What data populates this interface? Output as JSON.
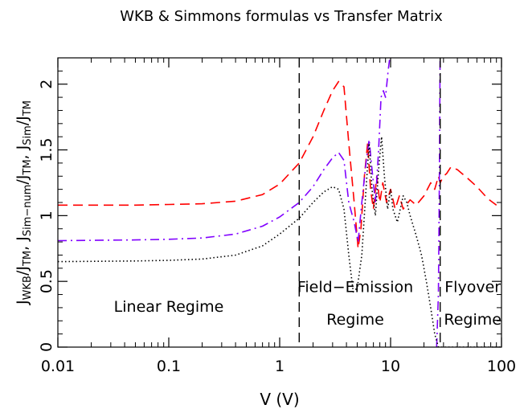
{
  "chart_data": {
    "type": "line",
    "title": "WKB & Simmons formulas vs Transfer Matrix",
    "xlabel": "V (V)",
    "ylabel_parts": [
      "J",
      "WKB",
      "/J",
      "TM",
      ", J",
      "Sim−num",
      "/J",
      "TM",
      ", J",
      "Sim",
      "/J",
      "TM"
    ],
    "x_scale": "log",
    "xlim": [
      0.01,
      100
    ],
    "ylim": [
      0,
      2.2
    ],
    "x_ticks": [
      0.01,
      0.1,
      1,
      10,
      100
    ],
    "x_tick_labels": [
      "0.01",
      "0.1",
      "1",
      "10",
      "100"
    ],
    "y_ticks": [
      0,
      0.5,
      1,
      1.5,
      2
    ],
    "y_tick_labels": [
      "0",
      "0.5",
      "1",
      "1.5",
      "2"
    ],
    "grid": false,
    "vlines": [
      1.5,
      28
    ],
    "annotations": [
      {
        "text": "Linear Regime",
        "x": 0.1,
        "y": 0.27
      },
      {
        "text": "Field−Emission",
        "x": 4.8,
        "y": 0.42
      },
      {
        "text": "Regime",
        "x": 4.8,
        "y": 0.17
      },
      {
        "text": "Flyover",
        "x": 55,
        "y": 0.42
      },
      {
        "text": "Regime",
        "x": 55,
        "y": 0.17
      }
    ],
    "series": [
      {
        "color": "#ff0000",
        "dash": "dashed",
        "points": [
          [
            0.01,
            1.08
          ],
          [
            0.05,
            1.08
          ],
          [
            0.1,
            1.085
          ],
          [
            0.2,
            1.09
          ],
          [
            0.4,
            1.11
          ],
          [
            0.7,
            1.16
          ],
          [
            1,
            1.24
          ],
          [
            1.5,
            1.4
          ],
          [
            2,
            1.6
          ],
          [
            2.5,
            1.8
          ],
          [
            3,
            1.95
          ],
          [
            3.4,
            2.02
          ],
          [
            3.8,
            1.98
          ],
          [
            4.2,
            1.55
          ],
          [
            4.7,
            1.1
          ],
          [
            5.1,
            0.75
          ],
          [
            5.4,
            0.9
          ],
          [
            5.8,
            1.3
          ],
          [
            6.2,
            1.55
          ],
          [
            6.6,
            1.2
          ],
          [
            7,
            1.05
          ],
          [
            7.5,
            1.3
          ],
          [
            8,
            1.1
          ],
          [
            8.5,
            1.25
          ],
          [
            9.2,
            1.1
          ],
          [
            10,
            1.2
          ],
          [
            11,
            1.05
          ],
          [
            12,
            1.15
          ],
          [
            13,
            1.05
          ],
          [
            15,
            1.12
          ],
          [
            17,
            1.08
          ],
          [
            20,
            1.15
          ],
          [
            23,
            1.25
          ],
          [
            25,
            1.2
          ],
          [
            27,
            1.3
          ],
          [
            28,
            1.25
          ],
          [
            30,
            1.3
          ],
          [
            32,
            1.32
          ],
          [
            35,
            1.37
          ],
          [
            40,
            1.35
          ],
          [
            50,
            1.28
          ],
          [
            60,
            1.22
          ],
          [
            75,
            1.13
          ],
          [
            90,
            1.08
          ]
        ]
      },
      {
        "color": "#8000ff",
        "dash": "dash-dot",
        "points": [
          [
            0.01,
            0.81
          ],
          [
            0.05,
            0.815
          ],
          [
            0.1,
            0.82
          ],
          [
            0.2,
            0.83
          ],
          [
            0.4,
            0.86
          ],
          [
            0.7,
            0.92
          ],
          [
            1,
            0.99
          ],
          [
            1.5,
            1.1
          ],
          [
            2,
            1.22
          ],
          [
            2.5,
            1.35
          ],
          [
            3,
            1.44
          ],
          [
            3.4,
            1.48
          ],
          [
            3.8,
            1.42
          ],
          [
            4.2,
            1.1
          ],
          [
            4.7,
            0.95
          ],
          [
            5.1,
            0.8
          ],
          [
            5.5,
            1.1
          ],
          [
            6,
            1.4
          ],
          [
            6.4,
            1.58
          ],
          [
            6.8,
            1.35
          ],
          [
            7.3,
            1.1
          ],
          [
            7.8,
            1.5
          ],
          [
            8.2,
            1.9
          ],
          [
            8.6,
            1.95
          ],
          [
            9,
            1.9
          ],
          [
            9.5,
            2.1
          ],
          [
            10,
            2.25
          ]
        ]
      },
      {
        "color": "#8000ff",
        "dash": "dash-dot",
        "points": [
          [
            26,
            0
          ],
          [
            27,
            0.4
          ],
          [
            27.5,
            1.2
          ],
          [
            28,
            2.3
          ]
        ]
      },
      {
        "color": "#000000",
        "dash": "dotted",
        "points": [
          [
            0.01,
            0.65
          ],
          [
            0.05,
            0.655
          ],
          [
            0.1,
            0.66
          ],
          [
            0.2,
            0.67
          ],
          [
            0.4,
            0.7
          ],
          [
            0.7,
            0.77
          ],
          [
            1,
            0.86
          ],
          [
            1.5,
            0.98
          ],
          [
            2,
            1.1
          ],
          [
            2.5,
            1.18
          ],
          [
            3,
            1.22
          ],
          [
            3.4,
            1.2
          ],
          [
            3.8,
            1.05
          ],
          [
            4.2,
            0.7
          ],
          [
            4.6,
            0.42
          ],
          [
            5,
            0.45
          ],
          [
            5.5,
            0.7
          ],
          [
            6,
            1.2
          ],
          [
            6.4,
            1.55
          ],
          [
            6.8,
            1.2
          ],
          [
            7.3,
            1.0
          ],
          [
            7.8,
            1.35
          ],
          [
            8.3,
            1.6
          ],
          [
            8.8,
            1.3
          ],
          [
            9.4,
            1.05
          ],
          [
            10,
            1.2
          ],
          [
            10.5,
            1.05
          ],
          [
            11.5,
            0.95
          ],
          [
            13,
            1.15
          ],
          [
            14,
            1.1
          ],
          [
            15,
            1.0
          ],
          [
            17,
            0.85
          ],
          [
            19,
            0.7
          ],
          [
            21,
            0.5
          ],
          [
            23,
            0.3
          ],
          [
            25,
            0.1
          ],
          [
            27,
            0.0
          ],
          [
            100,
            0.0
          ]
        ]
      }
    ]
  }
}
